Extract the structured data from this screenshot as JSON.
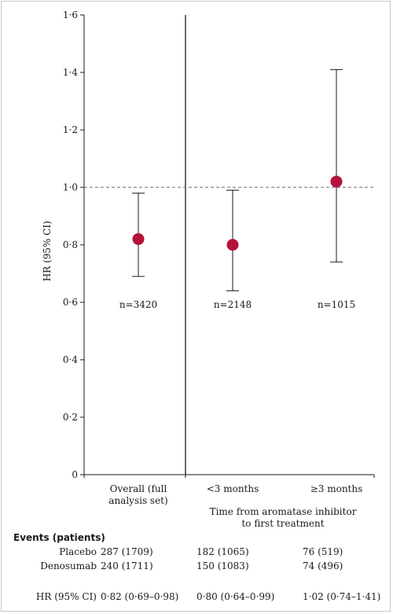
{
  "chart_data": {
    "type": "scatter",
    "subtype": "forest-plot",
    "ylabel": "HR (95% CI)",
    "ylim": [
      0,
      1.6
    ],
    "yticks": [
      "0",
      "0·2",
      "0·4",
      "0·6",
      "0·8",
      "1·0",
      "1·2",
      "1·4",
      "1·6"
    ],
    "reference_line": 1.0,
    "categories": [
      "Overall (full analysis set)",
      "<3 months",
      "≥3 months"
    ],
    "category_lines": [
      [
        "Overall (full",
        "analysis set)"
      ],
      [
        "<3 months"
      ],
      [
        "≥3 months"
      ]
    ],
    "group_label_lines": [
      "Time from aromatase inhibitor",
      "to first treatment"
    ],
    "points": [
      {
        "hr": 0.82,
        "lower": 0.69,
        "upper": 0.98,
        "n_label": "n=3420"
      },
      {
        "hr": 0.8,
        "lower": 0.64,
        "upper": 0.99,
        "n_label": "n=2148"
      },
      {
        "hr": 1.02,
        "lower": 0.74,
        "upper": 1.41,
        "n_label": "n=1015"
      }
    ],
    "grid": false,
    "colors": {
      "marker": "#b5123a",
      "reference": "#5a6e7a",
      "axis": "#1a1a1a"
    }
  },
  "events_table": {
    "header": "Events (patients)",
    "rows": [
      {
        "label": "Placebo",
        "values": [
          "287 (1709)",
          "182 (1065)",
          "76 (519)"
        ]
      },
      {
        "label": "Denosumab",
        "values": [
          "240 (1711)",
          "150 (1083)",
          "74 (496)"
        ]
      },
      {
        "label": "HR (95% CI)",
        "values": [
          "0·82 (0·69–0·98)",
          "0·80 (0·64–0·99)",
          "1·02 (0·74–1·41)"
        ]
      }
    ]
  }
}
